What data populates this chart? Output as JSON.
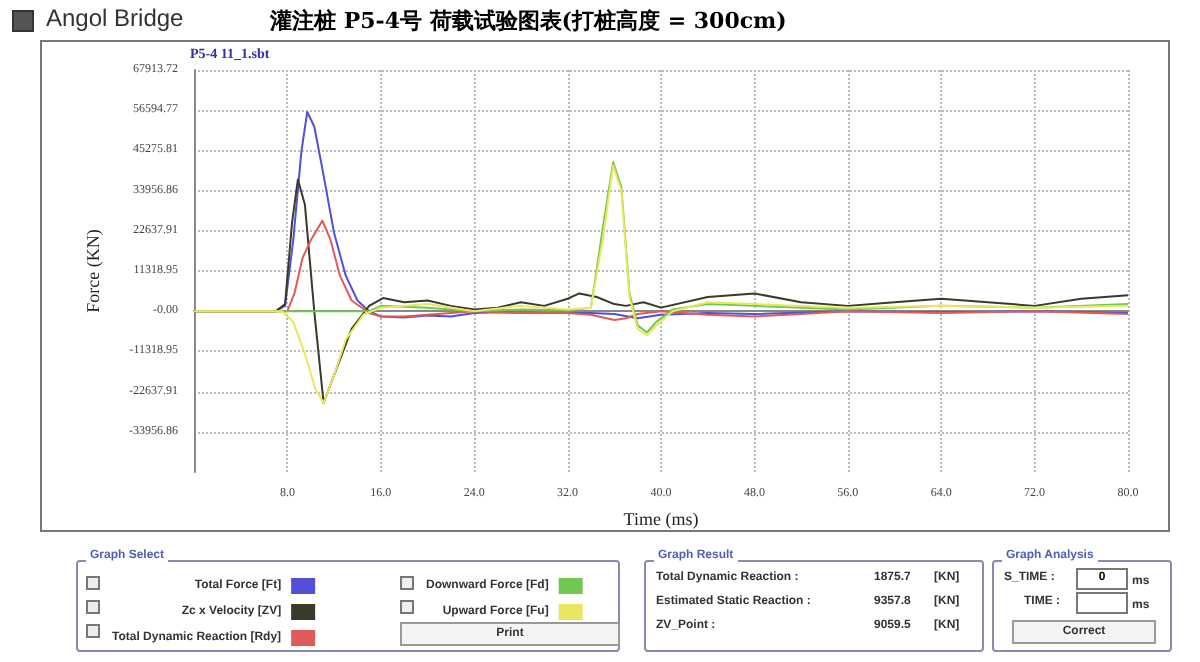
{
  "chart_data": {
    "type": "line",
    "title": "灌注桩 P5-4号 荷载试验图表(打桩高度 = 300cm)",
    "subtitle": "P5-4 11_1.sbt",
    "xlabel": "Time (ms)",
    "ylabel": "Force (KN)",
    "xlim": [
      0,
      80
    ],
    "xticks": [
      {
        "value": 8,
        "label": "8.0"
      },
      {
        "value": 16,
        "label": "16.0"
      },
      {
        "value": 24,
        "label": "24.0"
      },
      {
        "value": 32,
        "label": "32.0"
      },
      {
        "value": 40,
        "label": "40.0"
      },
      {
        "value": 48,
        "label": "48.0"
      },
      {
        "value": 56,
        "label": "56.0"
      },
      {
        "value": 64,
        "label": "64.0"
      },
      {
        "value": 72,
        "label": "72.0"
      },
      {
        "value": 80,
        "label": "80.0"
      }
    ],
    "ylim": [
      -45275.81,
      67913.72
    ],
    "yticks": [
      -33956.86,
      -22637.91,
      -11318.95,
      {
        "value": 0,
        "label": "-0.00"
      },
      11318.95,
      22637.91,
      33956.86,
      45275.81,
      56594.77,
      67913.72
    ],
    "grid": true,
    "legend": "bottom",
    "marker": "none",
    "line_style": "solid",
    "series": [
      {
        "name": "Total Force [Ft]",
        "color": "#5050d8",
        "x": [
          0,
          7,
          7.8,
          8.5,
          9.2,
          9.7,
          10.3,
          11,
          12,
          13,
          14,
          15,
          16,
          18,
          20,
          22,
          24,
          26,
          30,
          34,
          36,
          38,
          40,
          44,
          48,
          56,
          64,
          72,
          80
        ],
        "values": [
          0,
          0,
          1500,
          20000,
          45000,
          56100,
          52000,
          40000,
          22000,
          10000,
          3000,
          0,
          -1500,
          -1800,
          -1200,
          -1500,
          -500,
          -300,
          -500,
          -500,
          -800,
          -2000,
          -1000,
          -500,
          -800,
          0,
          -300,
          0,
          -500
        ]
      },
      {
        "name": "Zc x Velocity [ZV]",
        "color": "#3a3a2a",
        "x": [
          0,
          7,
          7.8,
          8.4,
          8.9,
          9.5,
          10.3,
          11.1,
          12,
          13.5,
          15,
          16.2,
          18,
          20,
          22,
          24,
          26,
          28,
          30,
          32,
          33,
          34.5,
          36,
          37,
          38.5,
          40,
          44,
          48,
          52,
          56,
          60,
          64,
          68,
          72,
          76,
          80
        ],
        "values": [
          0,
          0,
          2000,
          25000,
          37100,
          30000,
          0,
          -25800,
          -18000,
          -5000,
          1500,
          3700,
          2500,
          3000,
          1500,
          500,
          1000,
          2500,
          1500,
          3500,
          5000,
          4000,
          2000,
          1500,
          2500,
          1000,
          4000,
          5000,
          2500,
          1500,
          2500,
          3500,
          2500,
          1500,
          3500,
          4500
        ]
      },
      {
        "name": "Total Dynamic Reaction [Rdy]",
        "color": "#e05a5a",
        "x": [
          0,
          8,
          8.6,
          9.3,
          10,
          11,
          11.7,
          12.5,
          13.5,
          15,
          16,
          18,
          20,
          24,
          28,
          32,
          34,
          36,
          37,
          38,
          40,
          44,
          48,
          52,
          56,
          64,
          72,
          80
        ],
        "values": [
          0,
          0,
          5000,
          15000,
          20000,
          25500,
          20000,
          10000,
          3000,
          -500,
          -1500,
          -1500,
          -1000,
          0,
          -500,
          -500,
          -1000,
          -2500,
          -2000,
          -800,
          0,
          -1000,
          -1500,
          -800,
          0,
          -500,
          0,
          -800
        ]
      },
      {
        "name": "Downward Force [Fd]",
        "color": "#70c850",
        "x": [
          0,
          15,
          16,
          20,
          24,
          28,
          32,
          34,
          35,
          35.9,
          36.6,
          37.3,
          38,
          38.8,
          39.6,
          41,
          44,
          48,
          56,
          64,
          72,
          80
        ],
        "values": [
          0,
          0,
          1500,
          1000,
          0,
          500,
          300,
          1000,
          23000,
          42000,
          35000,
          5000,
          -4000,
          -6000,
          -3000,
          500,
          2000,
          1500,
          500,
          1500,
          1000,
          2000
        ]
      },
      {
        "name": "Upward Force [Fu]",
        "color": "#e8e860",
        "x": [
          0,
          7.5,
          8.5,
          9.5,
          10.4,
          11.1,
          12,
          13,
          14.5,
          16,
          20,
          24,
          28,
          32,
          34,
          35,
          35.9,
          36.6,
          37.3,
          38,
          38.8,
          39.6,
          41,
          44,
          48,
          56,
          64,
          72,
          80
        ],
        "values": [
          0,
          0,
          -3000,
          -12000,
          -22000,
          -25800,
          -18000,
          -8000,
          -1000,
          1000,
          2000,
          0,
          1500,
          500,
          1000,
          20000,
          41000,
          34000,
          4000,
          -5000,
          -6800,
          -4000,
          0,
          2500,
          2000,
          1000,
          1500,
          1000,
          1500
        ]
      }
    ],
    "annotations": [
      "Angol Bridge",
      "Graph Select",
      "Print",
      "Graph Result",
      "Total Dynamic Reaction :",
      "1875.7",
      "[KN]",
      "Estimated Static Reaction :",
      "9357.8",
      "[KN]",
      "ZV_Point :",
      "9059.5",
      "[KN]",
      "Graph Analysis",
      "S_TIME :",
      "0",
      "ms",
      "TIME :",
      "ms",
      "Correct"
    ]
  }
}
